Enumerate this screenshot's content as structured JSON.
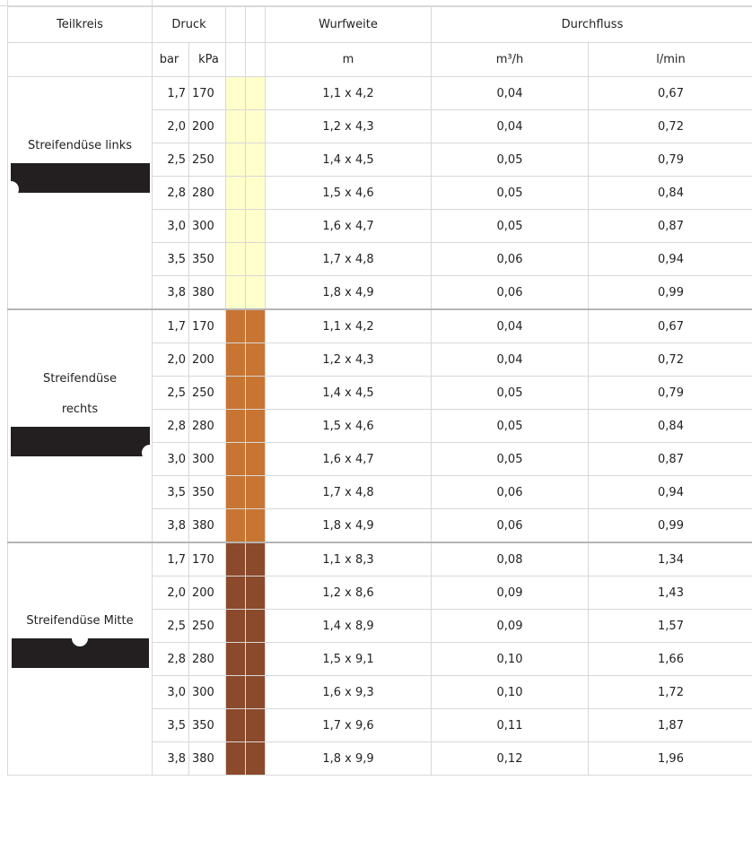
{
  "headers": {
    "teilkreis": "Teilkreis",
    "druck": "Druck",
    "wurfweite": "Wurfweite",
    "durchfluss": "Durchfluss"
  },
  "units": {
    "bar": "bar",
    "kpa": "kPa",
    "m": "m",
    "m3h": "m³/h",
    "lmin": "l/min"
  },
  "colors": {
    "links": "#ffffcc",
    "rechts": "#c87533",
    "mitte": "#8b4a2b"
  },
  "sections": [
    {
      "label_lines": [
        "Streifendüse links"
      ],
      "icon": "nozzle-left-pattern-icon",
      "rows": [
        {
          "bar": "1,7",
          "kpa": "170",
          "wurfweite": "1,1 x 4,2",
          "m3h": "0,04",
          "lmin": "0,67"
        },
        {
          "bar": "2,0",
          "kpa": "200",
          "wurfweite": "1,2 x 4,3",
          "m3h": "0,04",
          "lmin": "0,72"
        },
        {
          "bar": "2,5",
          "kpa": "250",
          "wurfweite": "1,4 x 4,5",
          "m3h": "0,05",
          "lmin": "0,79"
        },
        {
          "bar": "2,8",
          "kpa": "280",
          "wurfweite": "1,5 x 4,6",
          "m3h": "0,05",
          "lmin": "0,84"
        },
        {
          "bar": "3,0",
          "kpa": "300",
          "wurfweite": "1,6 x 4,7",
          "m3h": "0,05",
          "lmin": "0,87"
        },
        {
          "bar": "3,5",
          "kpa": "350",
          "wurfweite": "1,7 x 4,8",
          "m3h": "0,06",
          "lmin": "0,94"
        },
        {
          "bar": "3,8",
          "kpa": "380",
          "wurfweite": "1,8 x 4,9",
          "m3h": "0,06",
          "lmin": "0,99"
        }
      ]
    },
    {
      "label_lines": [
        "Streifendüse",
        "rechts"
      ],
      "icon": "nozzle-right-pattern-icon",
      "rows": [
        {
          "bar": "1,7",
          "kpa": "170",
          "wurfweite": "1,1 x 4,2",
          "m3h": "0,04",
          "lmin": "0,67"
        },
        {
          "bar": "2,0",
          "kpa": "200",
          "wurfweite": "1,2 x 4,3",
          "m3h": "0,04",
          "lmin": "0,72"
        },
        {
          "bar": "2,5",
          "kpa": "250",
          "wurfweite": "1,4 x 4,5",
          "m3h": "0,05",
          "lmin": "0,79"
        },
        {
          "bar": "2,8",
          "kpa": "280",
          "wurfweite": "1,5 x 4,6",
          "m3h": "0,05",
          "lmin": "0,84"
        },
        {
          "bar": "3,0",
          "kpa": "300",
          "wurfweite": "1,6 x 4,7",
          "m3h": "0,05",
          "lmin": "0,87"
        },
        {
          "bar": "3,5",
          "kpa": "350",
          "wurfweite": "1,7 x 4,8",
          "m3h": "0,06",
          "lmin": "0,94"
        },
        {
          "bar": "3,8",
          "kpa": "380",
          "wurfweite": "1,8 x 4,9",
          "m3h": "0,06",
          "lmin": "0,99"
        }
      ]
    },
    {
      "label_lines": [
        "Streifendüse Mitte"
      ],
      "icon": "nozzle-center-pattern-icon",
      "rows": [
        {
          "bar": "1,7",
          "kpa": "170",
          "wurfweite": "1,1 x 8,3",
          "m3h": "0,08",
          "lmin": "1,34"
        },
        {
          "bar": "2,0",
          "kpa": "200",
          "wurfweite": "1,2 x 8,6",
          "m3h": "0,09",
          "lmin": "1,43"
        },
        {
          "bar": "2,5",
          "kpa": "250",
          "wurfweite": "1,4 x 8,9",
          "m3h": "0,09",
          "lmin": "1,57"
        },
        {
          "bar": "2,8",
          "kpa": "280",
          "wurfweite": "1,5 x 9,1",
          "m3h": "0,10",
          "lmin": "1,66"
        },
        {
          "bar": "3,0",
          "kpa": "300",
          "wurfweite": "1,6 x 9,3",
          "m3h": "0,10",
          "lmin": "1,72"
        },
        {
          "bar": "3,5",
          "kpa": "350",
          "wurfweite": "1,7 x 9,6",
          "m3h": "0,11",
          "lmin": "1,87"
        },
        {
          "bar": "3,8",
          "kpa": "380",
          "wurfweite": "1,8 x 9,9",
          "m3h": "0,12",
          "lmin": "1,96"
        }
      ]
    }
  ]
}
